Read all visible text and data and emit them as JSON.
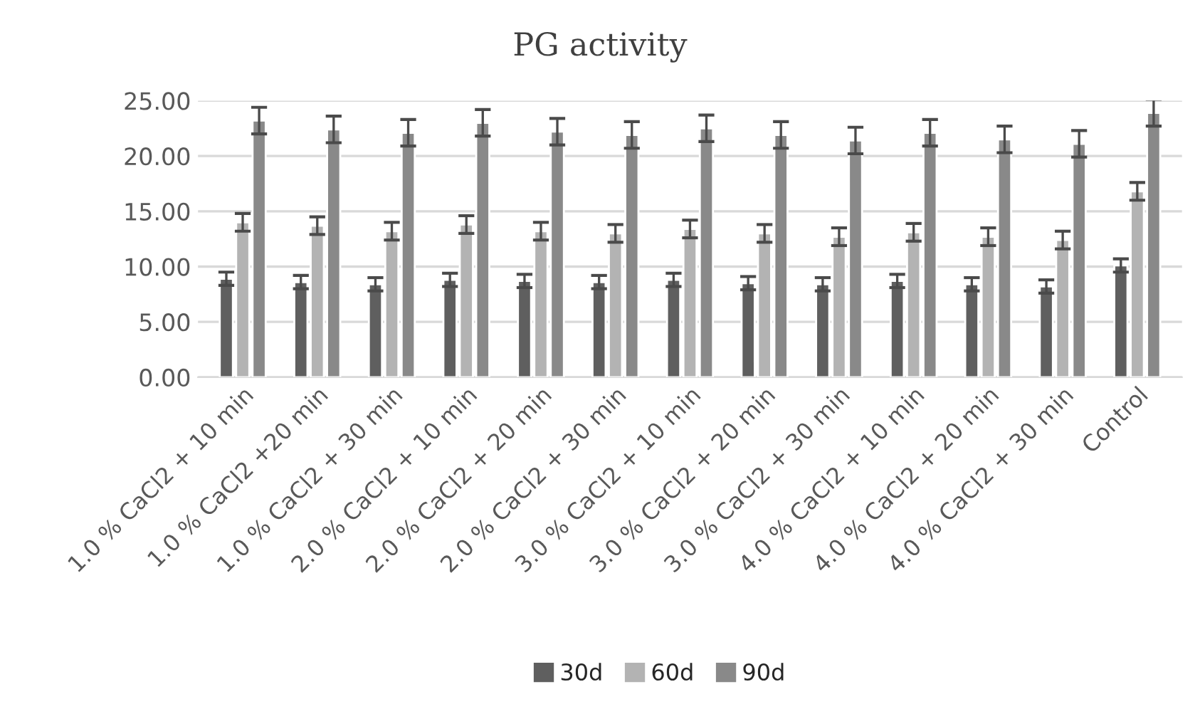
{
  "chart_data": {
    "type": "bar",
    "title": "PG activity",
    "categories": [
      "1.0 % CaCl2 + 10 min",
      "1.0 % CaCl2 +20 min",
      "1.0 % CaCl2 + 30 min",
      "2.0 % CaCl2 + 10 min",
      "2.0 % CaCl2 + 20 min",
      "2.0 % CaCl2 + 30 min",
      "3.0 % CaCl2 + 10 min",
      "3.0 % CaCl2 + 20 min",
      "3.0 % CaCl2 + 30 min",
      "4.0 % CaCl2 + 10 min",
      "4.0 % CaCl2 + 20 min",
      "4.0 % CaCl2 + 30 min",
      "Control"
    ],
    "series": [
      {
        "name": "30d",
        "color": "#5f5f5f",
        "values": [
          8.9,
          8.6,
          8.4,
          8.8,
          8.7,
          8.6,
          8.8,
          8.5,
          8.4,
          8.7,
          8.4,
          8.2,
          10.1
        ],
        "errors": [
          0.6,
          0.6,
          0.6,
          0.6,
          0.6,
          0.6,
          0.6,
          0.6,
          0.6,
          0.6,
          0.6,
          0.6,
          0.6
        ]
      },
      {
        "name": "60d",
        "color": "#b3b3b3",
        "values": [
          14.0,
          13.7,
          13.2,
          13.8,
          13.2,
          13.0,
          13.4,
          13.0,
          12.7,
          13.1,
          12.7,
          12.4,
          16.8
        ],
        "errors": [
          0.8,
          0.8,
          0.8,
          0.8,
          0.8,
          0.8,
          0.8,
          0.8,
          0.8,
          0.8,
          0.8,
          0.8,
          0.8
        ]
      },
      {
        "name": "90d",
        "color": "#898989",
        "values": [
          23.2,
          22.4,
          22.1,
          23.0,
          22.2,
          21.9,
          22.5,
          21.9,
          21.4,
          22.1,
          21.5,
          21.1,
          23.9
        ],
        "errors": [
          1.2,
          1.2,
          1.2,
          1.2,
          1.2,
          1.2,
          1.2,
          1.2,
          1.2,
          1.2,
          1.2,
          1.2,
          1.2
        ]
      }
    ],
    "ylim": [
      0,
      25
    ],
    "yticks": [
      {
        "value": 0,
        "label": "0.00"
      },
      {
        "value": 5,
        "label": "5.00"
      },
      {
        "value": 10,
        "label": "10.00"
      },
      {
        "value": 15,
        "label": "15.00"
      },
      {
        "value": 20,
        "label": "20.00"
      },
      {
        "value": 25,
        "label": "25.00"
      }
    ],
    "grid": "y",
    "legend": "bottom"
  }
}
